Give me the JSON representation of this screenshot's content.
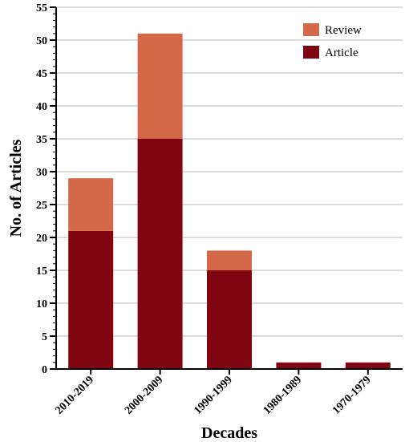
{
  "chart_data": {
    "type": "bar",
    "stacked": true,
    "title": "",
    "xlabel": "Decades",
    "ylabel": "No. of Articles",
    "categories": [
      "2010-2019",
      "2000-2009",
      "1990-1999",
      "1980-1989",
      "1970-1979"
    ],
    "series": [
      {
        "name": "Article",
        "values": [
          21,
          35,
          15,
          1,
          1
        ],
        "color": "#7f0610"
      },
      {
        "name": "Review",
        "values": [
          8,
          16,
          3,
          0,
          0
        ],
        "color": "#d4694a"
      }
    ],
    "legend_order": [
      "Review",
      "Article"
    ],
    "legend_position": "top-right",
    "ylim": [
      0,
      55
    ],
    "yticks": [
      0,
      5,
      10,
      15,
      20,
      25,
      30,
      35,
      40,
      45,
      50,
      55
    ],
    "grid": true,
    "grid_color": "#b8b8b8"
  }
}
